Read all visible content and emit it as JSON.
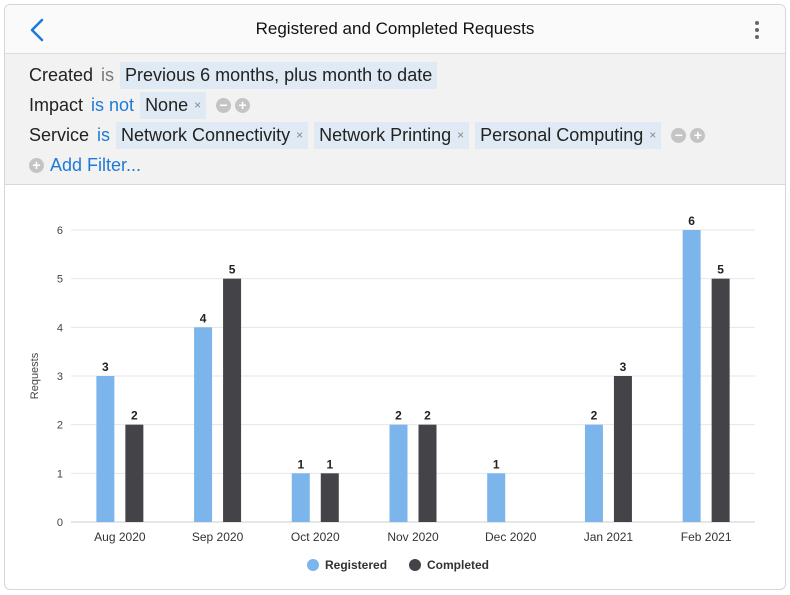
{
  "header": {
    "title": "Registered and Completed Requests"
  },
  "filters": {
    "rows": [
      {
        "field": "Created",
        "op": "is",
        "op_blue": false,
        "chips": [
          "Previous 6 months, plus month to date"
        ],
        "removable": false,
        "controls": false
      },
      {
        "field": "Impact",
        "op": "is not",
        "op_blue": true,
        "chips": [
          "None"
        ],
        "removable": true,
        "controls": true
      },
      {
        "field": "Service",
        "op": "is",
        "op_blue": true,
        "chips": [
          "Network Connectivity",
          "Network Printing",
          "Personal Computing"
        ],
        "removable": true,
        "controls": true
      }
    ],
    "add_label": "Add Filter...",
    "remove_glyph": "×"
  },
  "chart_data": {
    "type": "bar",
    "categories": [
      "Aug 2020",
      "Sep 2020",
      "Oct 2020",
      "Nov 2020",
      "Dec 2020",
      "Jan 2021",
      "Feb 2021"
    ],
    "series": [
      {
        "name": "Registered",
        "color": "#7cb5ec",
        "values": [
          3,
          4,
          1,
          2,
          1,
          2,
          6
        ]
      },
      {
        "name": "Completed",
        "color": "#434348",
        "values": [
          2,
          5,
          1,
          2,
          null,
          3,
          5
        ]
      }
    ],
    "ylabel": "Requests",
    "ylim": [
      0,
      6
    ],
    "yticks": [
      0,
      1,
      2,
      3,
      4,
      5,
      6
    ],
    "grid": true,
    "legend": "bottom-center",
    "data_labels": true
  }
}
